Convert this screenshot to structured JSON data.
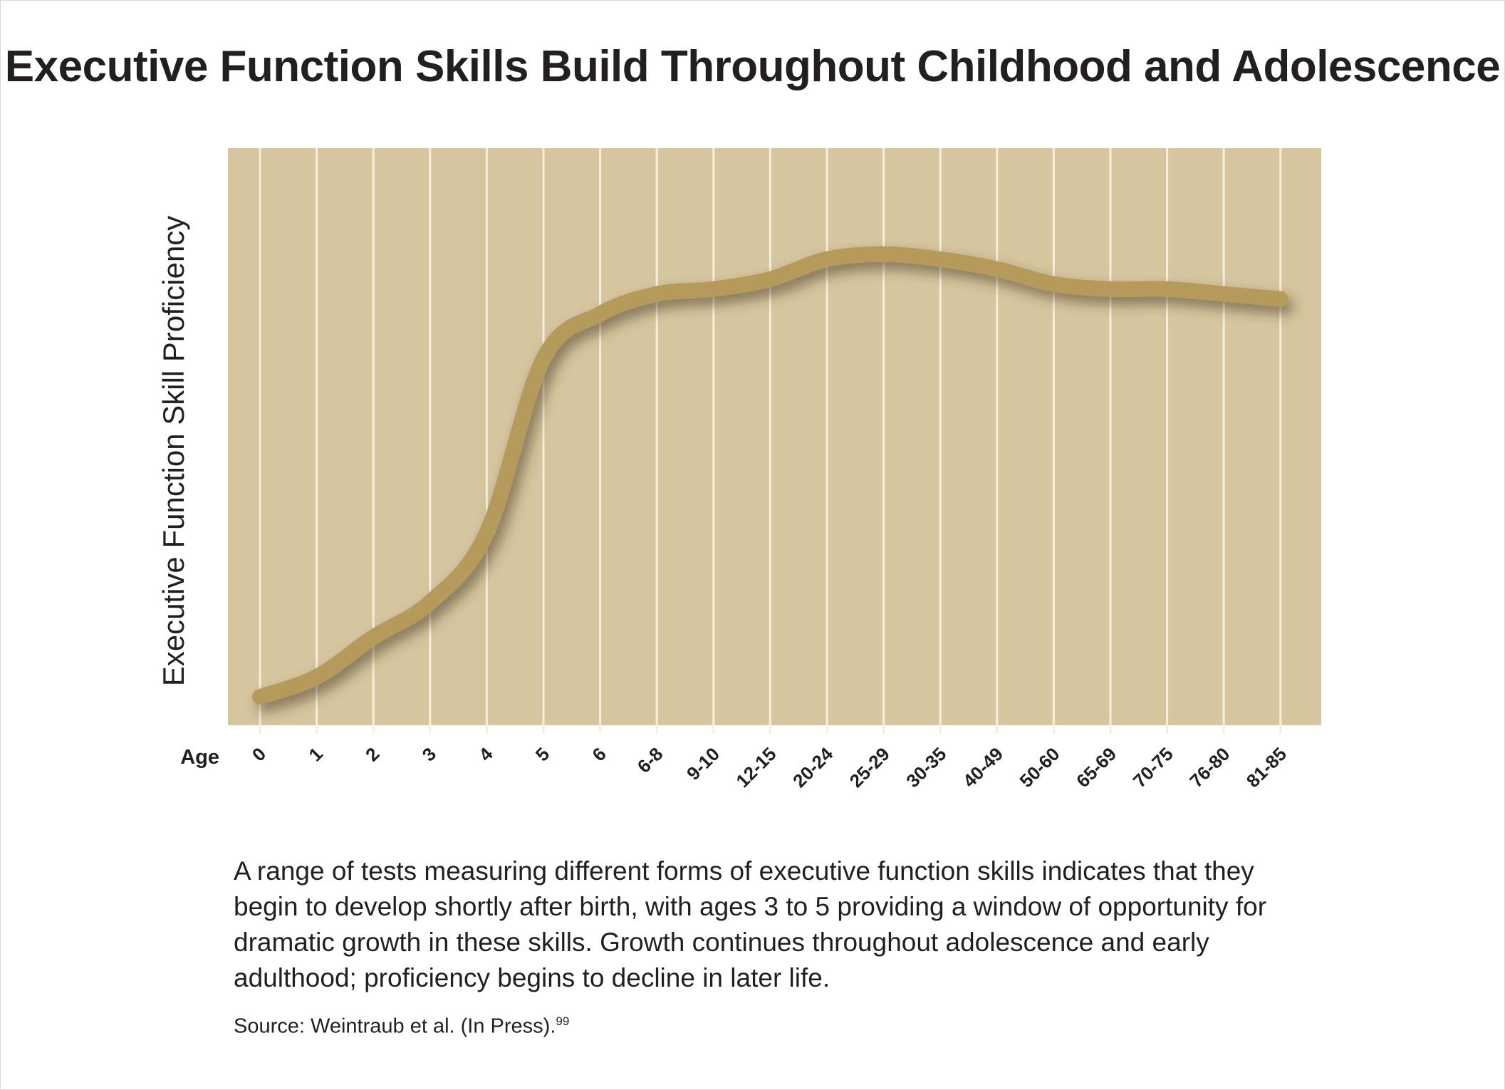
{
  "chart_data": {
    "type": "line",
    "title": "Executive Function Skills Build Throughout Childhood and Adolescence",
    "xlabel": "Age",
    "ylabel": "Executive Function Skill Proficiency",
    "categories": [
      "0",
      "1",
      "2",
      "3",
      "4",
      "5",
      "6",
      "6-8",
      "9-10",
      "12-15",
      "20-24",
      "25-29",
      "30-35",
      "40-49",
      "50-60",
      "65-69",
      "70-75",
      "76-80",
      "81-85"
    ],
    "series": [
      {
        "values": [
          0.04,
          0.08,
          0.16,
          0.23,
          0.37,
          0.72,
          0.81,
          0.85,
          0.86,
          0.88,
          0.92,
          0.93,
          0.92,
          0.9,
          0.87,
          0.86,
          0.86,
          0.85,
          0.84
        ]
      }
    ],
    "ylim": [
      0,
      1
    ],
    "grid": true,
    "legend": "none",
    "colors": {
      "plot_bg": "#d6c6a0",
      "line": "#b59a5c",
      "grid": "#f6efdc"
    }
  },
  "caption": "A range of tests measuring different forms of executive function skills indicates that they begin to develop shortly after birth, with ages 3 to 5 providing a window of opportunity for dramatic growth in these skills. Growth continues throughout adolescence and early adulthood; proficiency begins to decline in later life.",
  "source": {
    "text": "Source: Weintraub et al. (In Press).",
    "ref": "99"
  }
}
